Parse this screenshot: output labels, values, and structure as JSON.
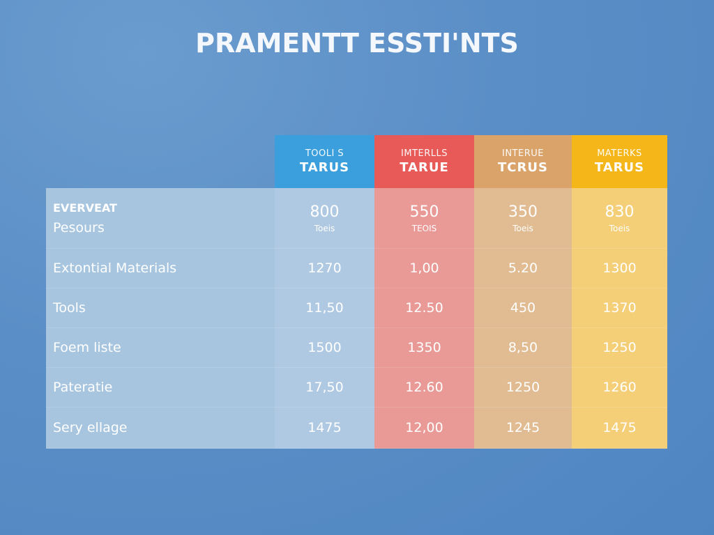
{
  "title": "PRAMENTT ESSTI'NTS",
  "colors": {
    "background": "#5a8ec6",
    "col1": "#3a9fdc",
    "col2": "#e85a58",
    "col3": "#d9a36a",
    "col4": "#f4b619"
  },
  "columns": [
    {
      "sub": "TOOLI S",
      "main": "TARUS"
    },
    {
      "sub": "IMTERLLS",
      "main": "TARUE"
    },
    {
      "sub": "INTERUE",
      "main": "TCRUS"
    },
    {
      "sub": "MATERKS",
      "main": "TARUS"
    }
  ],
  "first_row": {
    "heading": "EVERVEAT",
    "label": "Pesours",
    "values": [
      "800",
      "550",
      "350",
      "830"
    ],
    "units": [
      "Toeis",
      "TEOIS",
      "Toeis",
      "Toeis"
    ]
  },
  "rows": [
    {
      "label": "Extontial Materials",
      "values": [
        "1270",
        "1,00",
        "5.20",
        "1300"
      ]
    },
    {
      "label": "Tools",
      "values": [
        "11,50",
        "12.50",
        "450",
        "1370"
      ]
    },
    {
      "label": "Foem liste",
      "values": [
        "1500",
        "1350",
        "8,50",
        "1250"
      ]
    },
    {
      "label": "Pateratie",
      "values": [
        "17,50",
        "12.60",
        "1250",
        "1260"
      ]
    },
    {
      "label": "Sery ellage",
      "values": [
        "1475",
        "12,00",
        "1245",
        "1475"
      ]
    }
  ]
}
